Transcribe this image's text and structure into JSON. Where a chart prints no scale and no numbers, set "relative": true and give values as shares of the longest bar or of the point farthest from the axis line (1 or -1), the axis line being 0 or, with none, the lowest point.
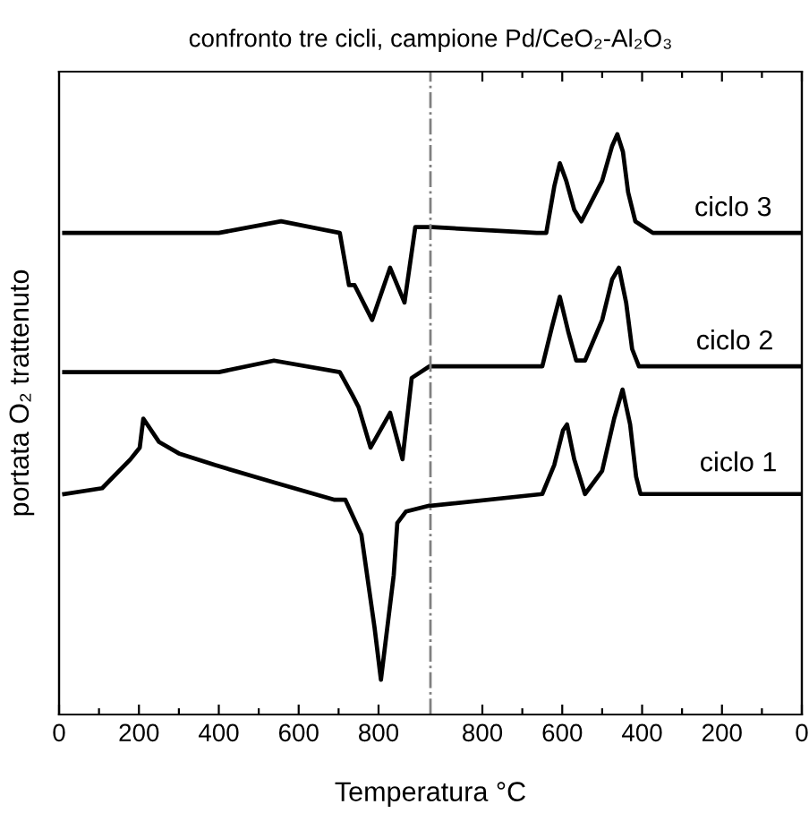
{
  "chart_data": {
    "type": "line",
    "title": "confronto tre cicli, campione Pd/CeO₂-Al₂O₃",
    "xlabel": "Temperatura °C",
    "ylabel": "portata O₂ trattenuto",
    "relative": true,
    "xlim": [
      0,
      1860
    ],
    "xticks": [
      0,
      {
        "value": 100,
        "label": null
      },
      200,
      {
        "value": 300,
        "label": null
      },
      400,
      {
        "value": 500,
        "label": null
      },
      600,
      {
        "value": 700,
        "label": null
      },
      800
    ],
    "x2lim": [
      1860,
      0
    ],
    "x2ticks": [
      800,
      {
        "value": 700,
        "label": null
      },
      600,
      {
        "value": 500,
        "label": null
      },
      400,
      {
        "value": 300,
        "label": null
      },
      200,
      {
        "value": 100,
        "label": null
      },
      0
    ],
    "grid": false,
    "marker": "none",
    "line_style": "solid",
    "ref_lines": [
      {
        "axis": "x",
        "value": 930,
        "color": "#808080",
        "line_style": "dotted"
      }
    ],
    "series": [
      {
        "name": "ciclo 3",
        "color": "#000000",
        "x": [
          13,
          400,
          556,
          703,
          726,
          740,
          784,
          829,
          865,
          892,
          923,
          935,
          1196,
          1220,
          1240,
          1254,
          1270,
          1290,
          1308,
          1360,
          1385,
          1398,
          1412,
          1425,
          1443,
          1487,
          1855
        ],
        "values": [
          0.83,
          0.83,
          0.85,
          0.83,
          0.74,
          0.74,
          0.68,
          0.77,
          0.71,
          0.84,
          0.84,
          0.84,
          0.83,
          0.83,
          0.91,
          0.95,
          0.92,
          0.87,
          0.85,
          0.92,
          0.98,
          1.0,
          0.97,
          0.9,
          0.85,
          0.83,
          0.83
        ]
      },
      {
        "name": "ciclo 2",
        "color": "#000000",
        "x": [
          13,
          400,
          538,
          703,
          735,
          750,
          780,
          829,
          860,
          883,
          927,
          935,
          1210,
          1235,
          1254,
          1275,
          1295,
          1317,
          1360,
          1385,
          1402,
          1420,
          1435,
          1452,
          1855
        ],
        "values": [
          0.59,
          0.59,
          0.61,
          0.59,
          0.55,
          0.53,
          0.46,
          0.52,
          0.44,
          0.58,
          0.6,
          0.6,
          0.6,
          0.67,
          0.72,
          0.66,
          0.61,
          0.61,
          0.68,
          0.75,
          0.77,
          0.71,
          0.63,
          0.6,
          0.6
        ]
      },
      {
        "name": "ciclo 1",
        "color": "#000000",
        "x": [
          13,
          108,
          179,
          202,
          211,
          250,
          300,
          390,
          538,
          690,
          717,
          757,
          790,
          806,
          822,
          838,
          847,
          869,
          927,
          936,
          1210,
          1240,
          1262,
          1272,
          1290,
          1317,
          1360,
          1390,
          1411,
          1430,
          1445,
          1456,
          1855
        ],
        "values": [
          0.38,
          0.39,
          0.44,
          0.46,
          0.51,
          0.47,
          0.45,
          0.43,
          0.4,
          0.37,
          0.37,
          0.31,
          0.15,
          0.06,
          0.15,
          0.24,
          0.33,
          0.35,
          0.36,
          0.36,
          0.38,
          0.43,
          0.49,
          0.5,
          0.44,
          0.38,
          0.42,
          0.51,
          0.56,
          0.5,
          0.41,
          0.38,
          0.38
        ]
      }
    ]
  }
}
